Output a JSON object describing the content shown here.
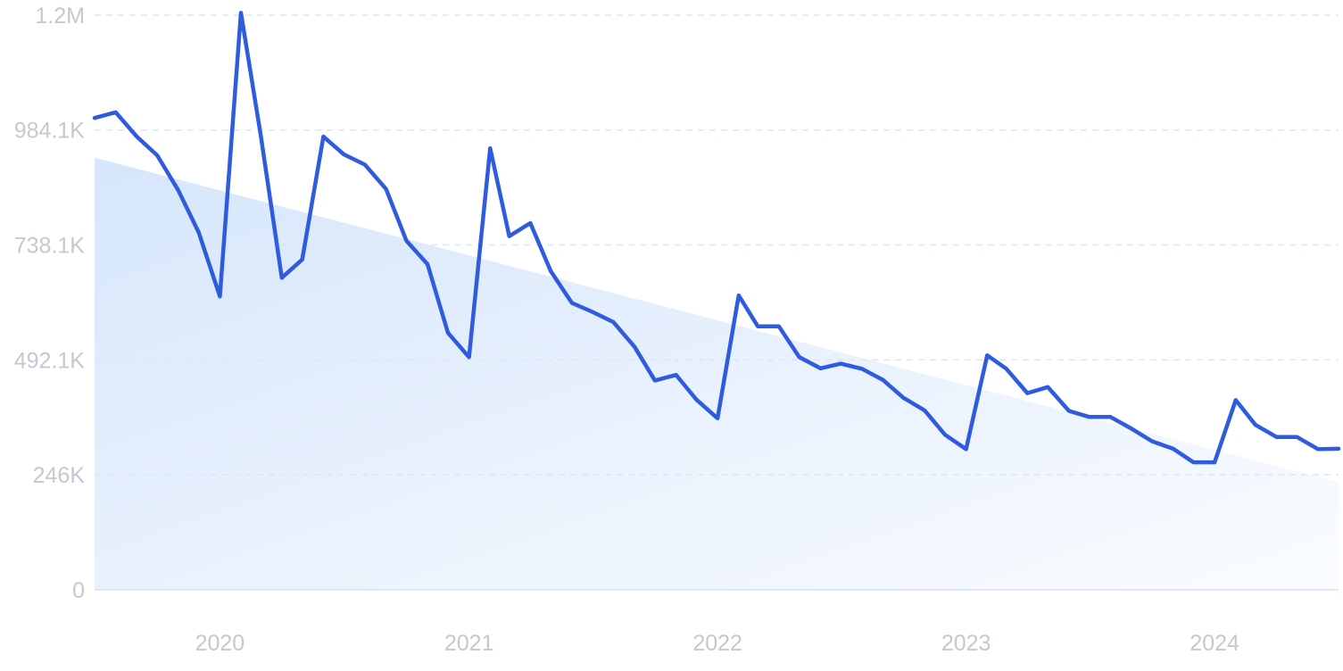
{
  "chart_data": {
    "type": "line",
    "title": "",
    "xlabel": "",
    "ylabel": "",
    "ylim": [
      0,
      1230000
    ],
    "xlim": [
      "2019-07-01",
      "2024-07-01"
    ],
    "grid": true,
    "y_ticks": [
      {
        "value": 0,
        "label": "0"
      },
      {
        "value": 246000,
        "label": "246K"
      },
      {
        "value": 492100,
        "label": "492.1K"
      },
      {
        "value": 738100,
        "label": "738.1K"
      },
      {
        "value": 984100,
        "label": "984.1K"
      },
      {
        "value": 1230000,
        "label": "1.2M"
      }
    ],
    "x_ticks": [
      {
        "value": "2020-01-01",
        "label": "2020"
      },
      {
        "value": "2021-01-01",
        "label": "2021"
      },
      {
        "value": "2022-01-01",
        "label": "2022"
      },
      {
        "value": "2023-01-01",
        "label": "2023"
      },
      {
        "value": "2024-01-01",
        "label": "2024"
      }
    ],
    "trend": {
      "start": [
        "2019-07-01",
        925000
      ],
      "end": [
        "2024-07-01",
        230000
      ]
    },
    "series": [
      {
        "color": "#2f5bdf",
        "x": [
          "2019-07-01",
          "2019-08-01",
          "2019-09-01",
          "2019-10-01",
          "2019-11-01",
          "2019-12-01",
          "2020-01-01",
          "2020-02-01",
          "2020-03-01",
          "2020-04-01",
          "2020-05-01",
          "2020-06-01",
          "2020-07-01",
          "2020-08-01",
          "2020-09-01",
          "2020-10-01",
          "2020-11-01",
          "2020-12-01",
          "2021-01-01",
          "2021-02-01",
          "2021-03-01",
          "2021-04-01",
          "2021-05-01",
          "2021-06-01",
          "2021-07-01",
          "2021-08-01",
          "2021-09-01",
          "2021-10-01",
          "2021-11-01",
          "2021-12-01",
          "2022-01-01",
          "2022-02-01",
          "2022-03-01",
          "2022-04-01",
          "2022-05-01",
          "2022-06-01",
          "2022-07-01",
          "2022-08-01",
          "2022-09-01",
          "2022-10-01",
          "2022-11-01",
          "2022-12-01",
          "2023-01-01",
          "2023-02-01",
          "2023-03-01",
          "2023-04-01",
          "2023-05-01",
          "2023-06-01",
          "2023-07-01",
          "2023-08-01",
          "2023-09-01",
          "2023-10-01",
          "2023-11-01",
          "2023-12-01",
          "2024-01-01",
          "2024-02-01",
          "2024-03-01",
          "2024-04-01",
          "2024-05-01",
          "2024-06-01",
          "2024-07-01"
        ],
        "y": [
          1010000,
          1022000,
          970000,
          930000,
          855000,
          765000,
          628000,
          1235000,
          973000,
          668000,
          707000,
          970000,
          932000,
          910000,
          858000,
          747000,
          697000,
          550000,
          498000,
          945000,
          757000,
          785000,
          682000,
          614000,
          595000,
          573000,
          520000,
          448000,
          460000,
          407000,
          367000,
          630000,
          564000,
          564000,
          498000,
          474000,
          484000,
          473000,
          449000,
          411000,
          384000,
          332000,
          301000,
          502000,
          473000,
          421000,
          434000,
          383000,
          370000,
          370000,
          345000,
          318000,
          302000,
          273000,
          273000,
          406000,
          353000,
          327000,
          327000,
          301000,
          302000
        ]
      }
    ]
  }
}
